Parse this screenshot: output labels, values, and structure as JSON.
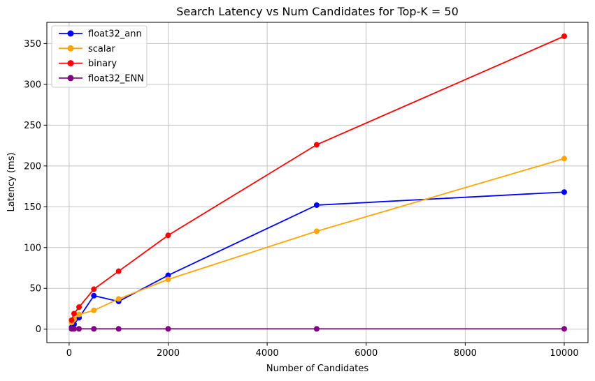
{
  "chart_data": {
    "type": "line",
    "title": "Search Latency vs Num Candidates for Top-K = 50",
    "xlabel": "Number of Candidates",
    "ylabel": "Latency (ms)",
    "x": [
      50,
      100,
      200,
      500,
      1000,
      2000,
      5000,
      10000
    ],
    "series": [
      {
        "name": "float32_ann",
        "color": "#0000ff",
        "values": [
          2,
          6,
          14,
          41,
          34,
          66,
          152,
          168
        ]
      },
      {
        "name": "scalar",
        "color": "#ffa500",
        "values": [
          8,
          12,
          18,
          23,
          37,
          61,
          120,
          209
        ]
      },
      {
        "name": "binary",
        "color": "#ff0000",
        "values": [
          11,
          19,
          27,
          49,
          71,
          115,
          226,
          359
        ]
      },
      {
        "name": "float32_ENN",
        "color": "#800080",
        "values": [
          0.4,
          0.4,
          0.4,
          0.4,
          0.4,
          0.4,
          0.4,
          0.4
        ]
      }
    ],
    "xticks": [
      0,
      2000,
      4000,
      6000,
      8000,
      10000
    ],
    "yticks": [
      0,
      50,
      100,
      150,
      200,
      250,
      300,
      350
    ],
    "xlim": [
      -450,
      10480
    ],
    "ylim": [
      -16.5,
      376
    ],
    "grid": true,
    "legend_position": "upper-left",
    "colors": {
      "grid": "#c3c3c3",
      "spine": "#000000",
      "text": "#000000",
      "background": "#ffffff",
      "legend_border": "#cccccc"
    }
  }
}
